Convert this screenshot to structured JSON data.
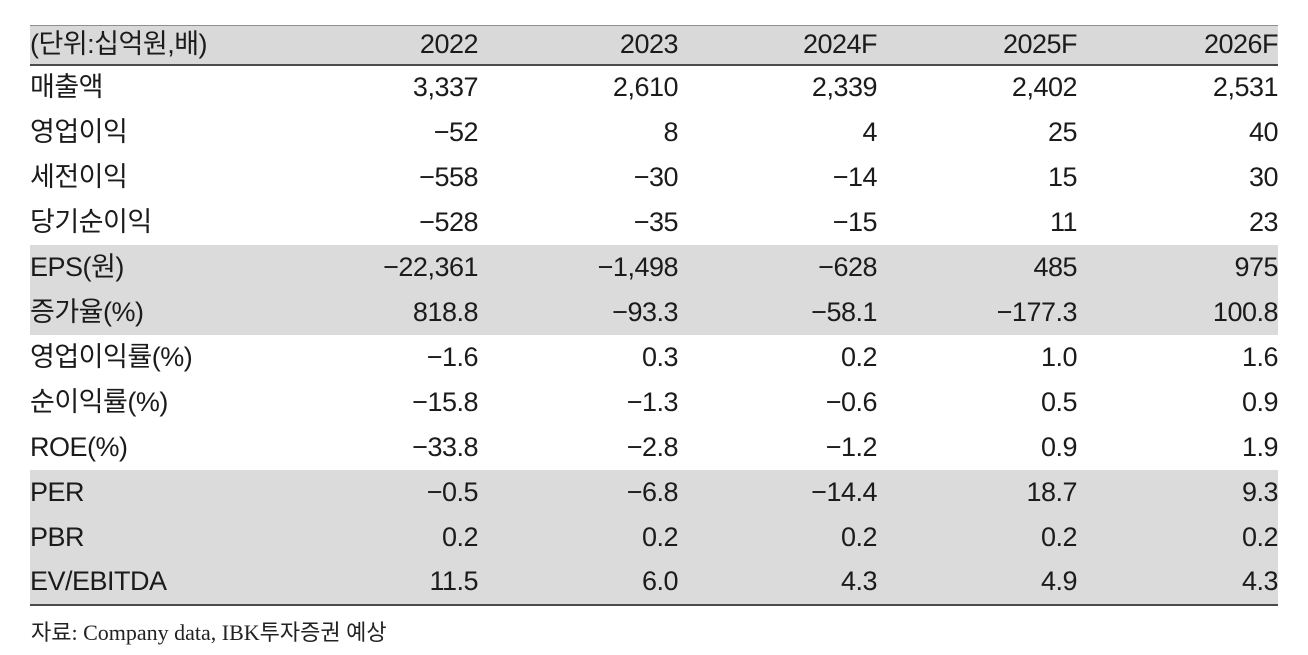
{
  "table": {
    "unit_label": "(단위:십억원,배)",
    "columns": [
      "2022",
      "2023",
      "2024F",
      "2025F",
      "2026F"
    ],
    "rows": [
      {
        "label": "매출액",
        "values": [
          "3,337",
          "2,610",
          "2,339",
          "2,402",
          "2,531"
        ],
        "shaded": false
      },
      {
        "label": "영업이익",
        "values": [
          "−52",
          "8",
          "4",
          "25",
          "40"
        ],
        "shaded": false
      },
      {
        "label": "세전이익",
        "values": [
          "−558",
          "−30",
          "−14",
          "15",
          "30"
        ],
        "shaded": false
      },
      {
        "label": "당기순이익",
        "values": [
          "−528",
          "−35",
          "−15",
          "11",
          "23"
        ],
        "shaded": false
      },
      {
        "label": "EPS(원)",
        "values": [
          "−22,361",
          "−1,498",
          "−628",
          "485",
          "975"
        ],
        "shaded": true
      },
      {
        "label": "증가율(%)",
        "values": [
          "818.8",
          "−93.3",
          "−58.1",
          "−177.3",
          "100.8"
        ],
        "shaded": true
      },
      {
        "label": "영업이익률(%)",
        "values": [
          "−1.6",
          "0.3",
          "0.2",
          "1.0",
          "1.6"
        ],
        "shaded": false
      },
      {
        "label": "순이익률(%)",
        "values": [
          "−15.8",
          "−1.3",
          "−0.6",
          "0.5",
          "0.9"
        ],
        "shaded": false
      },
      {
        "label": "ROE(%)",
        "values": [
          "−33.8",
          "−2.8",
          "−1.2",
          "0.9",
          "1.9"
        ],
        "shaded": false
      },
      {
        "label": "PER",
        "values": [
          "−0.5",
          "−6.8",
          "−14.4",
          "18.7",
          "9.3"
        ],
        "shaded": true
      },
      {
        "label": "PBR",
        "values": [
          "0.2",
          "0.2",
          "0.2",
          "0.2",
          "0.2"
        ],
        "shaded": true
      },
      {
        "label": "EV/EBITDA",
        "values": [
          "11.5",
          "6.0",
          "4.3",
          "4.9",
          "4.3"
        ],
        "shaded": true
      }
    ],
    "source": "자료: Company data, IBK투자증권 예상"
  },
  "colors": {
    "header_band": "#d9d9d9",
    "shaded_band": "#dbdbdb",
    "heavy_rule": "#4b4b4b",
    "top_rule": "#8f8f8f",
    "text": "#1b1b1b"
  },
  "chart_data": {
    "type": "table",
    "title": "",
    "unit": "(단위:십억원,배)",
    "categories": [
      "2022",
      "2023",
      "2024F",
      "2025F",
      "2026F"
    ],
    "series": [
      {
        "name": "매출액",
        "values": [
          3337,
          2610,
          2339,
          2402,
          2531
        ]
      },
      {
        "name": "영업이익",
        "values": [
          -52,
          8,
          4,
          25,
          40
        ]
      },
      {
        "name": "세전이익",
        "values": [
          -558,
          -30,
          -14,
          15,
          30
        ]
      },
      {
        "name": "당기순이익",
        "values": [
          -528,
          -35,
          -15,
          11,
          23
        ]
      },
      {
        "name": "EPS(원)",
        "values": [
          -22361,
          -1498,
          -628,
          485,
          975
        ]
      },
      {
        "name": "증가율(%)",
        "values": [
          818.8,
          -93.3,
          -58.1,
          -177.3,
          100.8
        ]
      },
      {
        "name": "영업이익률(%)",
        "values": [
          -1.6,
          0.3,
          0.2,
          1.0,
          1.6
        ]
      },
      {
        "name": "순이익률(%)",
        "values": [
          -15.8,
          -1.3,
          -0.6,
          0.5,
          0.9
        ]
      },
      {
        "name": "ROE(%)",
        "values": [
          -33.8,
          -2.8,
          -1.2,
          0.9,
          1.9
        ]
      },
      {
        "name": "PER",
        "values": [
          -0.5,
          -6.8,
          -14.4,
          18.7,
          9.3
        ]
      },
      {
        "name": "PBR",
        "values": [
          0.2,
          0.2,
          0.2,
          0.2,
          0.2
        ]
      },
      {
        "name": "EV/EBITDA",
        "values": [
          11.5,
          6.0,
          4.3,
          4.9,
          4.3
        ]
      }
    ],
    "source": "자료: Company data, IBK투자증권 예상"
  }
}
